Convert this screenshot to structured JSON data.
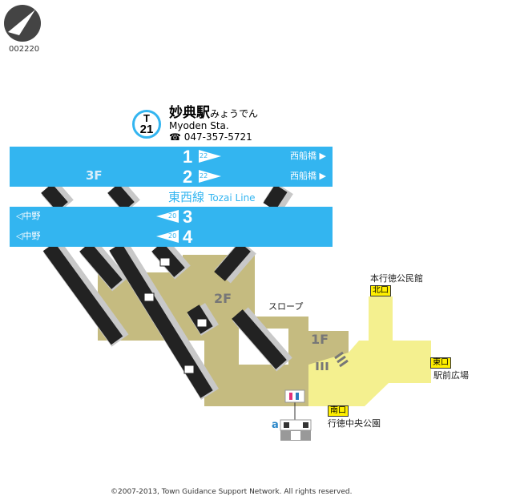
{
  "map_id": "002220",
  "station": {
    "line_code": "T",
    "number": "21",
    "name_ja": "妙典駅",
    "name_kana": "みょうでん",
    "name_en": "Myoden Sta.",
    "phone": "047-357-5721",
    "phone_icon": "telephone-icon"
  },
  "line": {
    "name_ja": "東西線",
    "name_en": "Tozai Line",
    "color": "#33b5f0"
  },
  "floors": {
    "f3": "3F",
    "f2": "2F",
    "f1": "1F"
  },
  "platforms": [
    {
      "number": "1",
      "car": "22",
      "direction": "西船橋",
      "side": "right"
    },
    {
      "number": "2",
      "car": "22",
      "direction": "西船橋",
      "side": "right"
    },
    {
      "number": "3",
      "car": "20",
      "direction": "中野",
      "side": "left"
    },
    {
      "number": "4",
      "car": "20",
      "direction": "中野",
      "side": "left"
    }
  ],
  "labels": {
    "slope": "スロープ"
  },
  "exits": [
    {
      "name": "北口",
      "landmark": "本行徳公民館"
    },
    {
      "name": "東口",
      "landmark": "駅前広場"
    },
    {
      "name": "南口",
      "landmark": "行徳中央公園"
    }
  ],
  "facility_letter": "a",
  "colors": {
    "concourse": "#c5bb80",
    "exit_area": "#f4f08f",
    "exit_badge": "#ffef00"
  },
  "copyright": "©2007-2013, Town Guidance Support Network. All rights reserved."
}
